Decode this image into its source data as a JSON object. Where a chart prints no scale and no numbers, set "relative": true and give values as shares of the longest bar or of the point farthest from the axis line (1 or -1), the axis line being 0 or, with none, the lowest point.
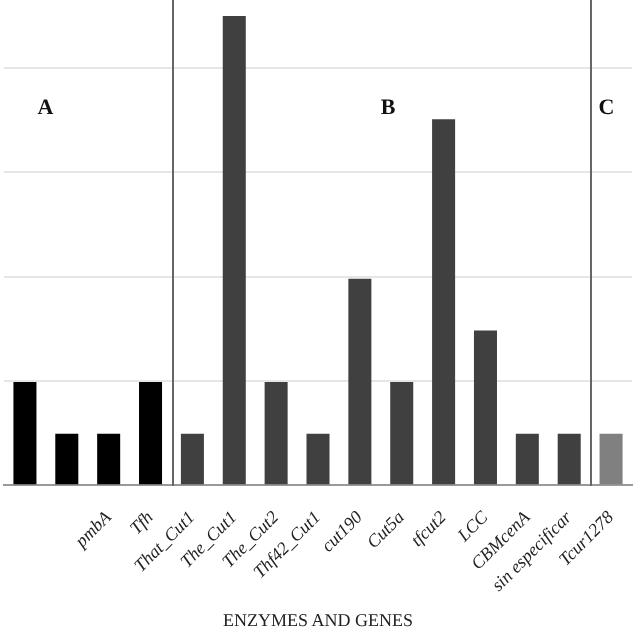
{
  "chart_data": {
    "type": "bar",
    "relative": true,
    "xlabel": "ENZYMES AND GENES",
    "categories": [
      null,
      null,
      "pmbA",
      "Tfh",
      "That_Cut1",
      "The_Cut1",
      "The_Cut2",
      "Thf42_Cut1",
      "cut190",
      "Cut5a",
      "tfcut2",
      "LCC",
      "CBMcenA",
      "sin especificar",
      "Tcur1278"
    ],
    "values": [
      0.22,
      0.11,
      0.11,
      0.22,
      0.11,
      1,
      0.22,
      0.11,
      0.44,
      0.22,
      0.78,
      0.33,
      0.11,
      0.11,
      0.11
    ],
    "colors": [
      "#000000",
      "#000000",
      "#000000",
      "#000000",
      "#404040",
      "#404040",
      "#404040",
      "#404040",
      "#404040",
      "#404040",
      "#404040",
      "#404040",
      "#404040",
      "#404040",
      "#808080"
    ],
    "annotations": [
      "A",
      "B",
      "C"
    ],
    "grid": "y",
    "legend": false
  }
}
